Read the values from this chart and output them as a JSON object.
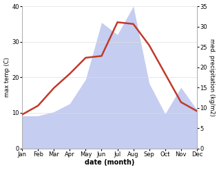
{
  "months": [
    "Jan",
    "Feb",
    "Mar",
    "Apr",
    "May",
    "Jun",
    "Jul",
    "Aug",
    "Sep",
    "Oct",
    "Nov",
    "Dec"
  ],
  "temp": [
    9.5,
    12.0,
    17.0,
    21.0,
    25.5,
    26.0,
    35.5,
    35.0,
    29.0,
    21.0,
    13.0,
    10.5
  ],
  "precip": [
    8.0,
    8.0,
    9.0,
    11.0,
    17.0,
    31.0,
    28.0,
    35.0,
    16.0,
    8.5,
    15.0,
    9.5
  ],
  "temp_color": "#c0392b",
  "precip_fill_color": "#c5cdf0",
  "temp_ylim": [
    0,
    40
  ],
  "precip_ylim": [
    0,
    35
  ],
  "temp_yticks": [
    0,
    10,
    20,
    30,
    40
  ],
  "precip_yticks": [
    0,
    5,
    10,
    15,
    20,
    25,
    30,
    35
  ],
  "ylabel_left": "max temp (C)",
  "ylabel_right": "med. precipitation (kg/m2)",
  "xlabel": "date (month)",
  "bg_color": "#ffffff",
  "line_width": 1.8,
  "grid_color": "#dddddd"
}
